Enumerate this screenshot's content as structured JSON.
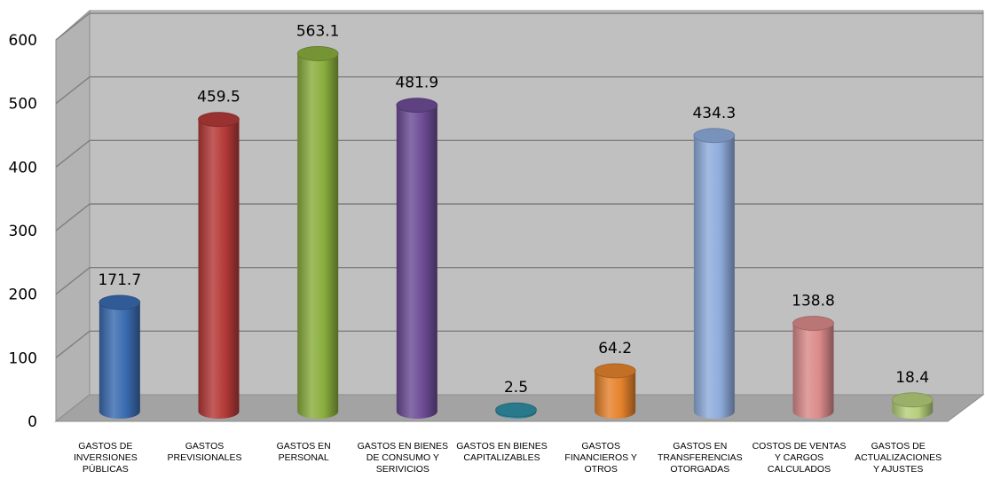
{
  "chart_data": {
    "type": "bar",
    "title": "",
    "xlabel": "",
    "ylabel": "",
    "ylim": [
      0,
      600
    ],
    "yticks": [
      "0",
      "100",
      "200",
      "300",
      "400",
      "500",
      "600"
    ],
    "grid": true,
    "legend": "none",
    "style": "3d-cylinder",
    "categories": [
      [
        "GASTOS DE",
        "INVERSIONES",
        "PÚBLICAS"
      ],
      [
        "GASTOS",
        "PREVISIONALES"
      ],
      [
        "GASTOS EN",
        "PERSONAL"
      ],
      [
        "GASTOS EN BIENES",
        "DE CONSUMO Y",
        "SERIVICIOS"
      ],
      [
        "GASTOS EN BIENES",
        "CAPITALIZABLES"
      ],
      [
        "GASTOS",
        "FINANCIEROS Y",
        "OTROS"
      ],
      [
        "GASTOS EN",
        "TRANSFERENCIAS",
        "OTORGADAS"
      ],
      [
        "COSTOS DE VENTAS",
        "Y CARGOS",
        "CALCULADOS"
      ],
      [
        "GASTOS DE",
        "ACTUALIZACIONES",
        "Y AJUSTES"
      ]
    ],
    "values": [
      171.7,
      459.5,
      563.1,
      481.9,
      2.5,
      64.2,
      434.3,
      138.8,
      18.4
    ],
    "value_labels": [
      "171.7",
      "459.5",
      "563.1",
      "481.9",
      "2.5",
      "64.2",
      "434.3",
      "138.8",
      "18.4"
    ],
    "colors": [
      "#3a6bb0",
      "#b43a38",
      "#8aae3e",
      "#6d4c96",
      "#2f8ea5",
      "#e5822c",
      "#8eacdc",
      "#db8a8a",
      "#b5cf7a"
    ]
  }
}
